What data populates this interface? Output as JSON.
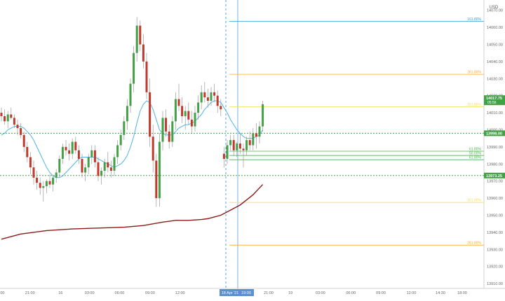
{
  "chart_data": {
    "type": "candlestick",
    "currency_label": "USD",
    "y_ticks": [
      "14070.00",
      "14060.00",
      "14050.00",
      "14040.00",
      "14030.00",
      "14020.00",
      "14010.00",
      "14000.00",
      "13990.00",
      "13980.00",
      "13970.00",
      "13960.00",
      "13950.00",
      "13940.00",
      "13930.00",
      "13920.00",
      "13910.00"
    ],
    "y_tick_values": [
      14070,
      14060,
      14050,
      14040,
      14030,
      14020,
      14010,
      14000,
      13990,
      13980,
      13970,
      13960,
      13950,
      13940,
      13930,
      13920,
      13910
    ],
    "x_ticks": [
      {
        "label": "00",
        "pos": 0.005
      },
      {
        "label": "21:00",
        "pos": 0.062
      },
      {
        "label": "16",
        "pos": 0.125
      },
      {
        "label": "03:00",
        "pos": 0.185
      },
      {
        "label": "06:00",
        "pos": 0.247
      },
      {
        "label": "09:00",
        "pos": 0.31
      },
      {
        "label": "12:00",
        "pos": 0.372
      },
      {
        "label": "21:00",
        "pos": 0.555
      },
      {
        "label": "19",
        "pos": 0.6
      },
      {
        "label": "03:00",
        "pos": 0.662
      },
      {
        "label": "06:00",
        "pos": 0.725
      },
      {
        "label": "09:00",
        "pos": 0.787
      },
      {
        "label": "12:00",
        "pos": 0.85
      },
      {
        "label": "14:30",
        "pos": 0.91
      },
      {
        "label": "18:00",
        "pos": 0.955
      }
    ],
    "crosshair_labels": [
      "18 Apr '21",
      "19:00"
    ],
    "ylim": [
      13908,
      14076
    ],
    "price_label": {
      "value": "14017.75",
      "sub": "05:56",
      "y": 14017.75
    },
    "level_labels": [
      {
        "label": "13998.00",
        "y": 13998
      },
      {
        "label": "13973.25",
        "y": 13973.25
      }
    ],
    "horizontal_levels": [
      {
        "y": 14063.5,
        "color": "#2a9fd6",
        "label": "161.80%"
      },
      {
        "y": 14032.5,
        "color": "#ffa726",
        "label": "261.80%"
      },
      {
        "y": 14013.5,
        "color": "#f5e050",
        "label": "161.80%"
      },
      {
        "y": 13998,
        "color": "#43a047",
        "dash": true,
        "label": ""
      },
      {
        "y": 13987.5,
        "color": "#4caf50",
        "label": "61.80%"
      },
      {
        "y": 13985,
        "color": "#4caf50",
        "label": "50.00%"
      },
      {
        "y": 13982.5,
        "color": "#4caf50",
        "label": "61.80%"
      },
      {
        "y": 13973.25,
        "color": "#43a047",
        "dash": true,
        "label": ""
      },
      {
        "y": 13957.5,
        "color": "#f5e050",
        "label": "161.80%"
      },
      {
        "y": 13932.5,
        "color": "#ffa726",
        "label": "261.80%"
      }
    ],
    "candles": [
      [
        14010,
        14013,
        14005,
        14008
      ],
      [
        14008,
        14012,
        14003,
        14005
      ],
      [
        14005,
        14011,
        14001,
        14009
      ],
      [
        14009,
        14013,
        14006,
        14007
      ],
      [
        14007,
        14009,
        14001,
        14003
      ],
      [
        14003,
        14006,
        13997,
        14001
      ],
      [
        14001,
        14004,
        13995,
        13997
      ],
      [
        13997,
        13999,
        13987,
        13990
      ],
      [
        13990,
        13993,
        13981,
        13984
      ],
      [
        13984,
        13987,
        13974,
        13978
      ],
      [
        13978,
        13982,
        13968,
        13972
      ],
      [
        13972,
        13976,
        13965,
        13969
      ],
      [
        13969,
        13972,
        13962,
        13966
      ],
      [
        13966,
        13970,
        13958,
        13967
      ],
      [
        13967,
        13971,
        13963,
        13970
      ],
      [
        13970,
        13974,
        13966,
        13968
      ],
      [
        13968,
        13973,
        13964,
        13972
      ],
      [
        13972,
        13977,
        13969,
        13975
      ],
      [
        13975,
        13985,
        13972,
        13983
      ],
      [
        13983,
        13992,
        13980,
        13990
      ],
      [
        13990,
        13994,
        13985,
        13988
      ],
      [
        13988,
        13992,
        13982,
        13986
      ],
      [
        13986,
        13995,
        13983,
        13993
      ],
      [
        13993,
        13996,
        13986,
        13988
      ],
      [
        13988,
        13991,
        13980,
        13983
      ],
      [
        13983,
        13986,
        13972,
        13975
      ],
      [
        13975,
        13980,
        13970,
        13978
      ],
      [
        13978,
        13986,
        13974,
        13984
      ],
      [
        13984,
        13991,
        13980,
        13988
      ],
      [
        13988,
        13991,
        13978,
        13981
      ],
      [
        13981,
        13984,
        13970,
        13973
      ],
      [
        13973,
        13978,
        13968,
        13976
      ],
      [
        13976,
        13983,
        13972,
        13981
      ],
      [
        13981,
        13987,
        13975,
        13978
      ],
      [
        13978,
        13982,
        13972,
        13976
      ],
      [
        13976,
        13986,
        13973,
        13984
      ],
      [
        13984,
        13994,
        13980,
        13991
      ],
      [
        13991,
        14000,
        13988,
        13997
      ],
      [
        13997,
        14008,
        13994,
        14005
      ],
      [
        14005,
        14018,
        14000,
        14014
      ],
      [
        14014,
        14030,
        14010,
        14027
      ],
      [
        14027,
        14049,
        14022,
        14045
      ],
      [
        14045,
        14066,
        14040,
        14061
      ],
      [
        14061,
        14064,
        14046,
        14050
      ],
      [
        14050,
        14056,
        14036,
        14040
      ],
      [
        14040,
        14045,
        14018,
        14022
      ],
      [
        14022,
        14030,
        13990,
        13996
      ],
      [
        13996,
        14003,
        13975,
        13982
      ],
      [
        13982,
        13986,
        13955,
        13960
      ],
      [
        13960,
        13998,
        13955,
        13993
      ],
      [
        13993,
        14011,
        13988,
        14007
      ],
      [
        14007,
        14012,
        13996,
        13999
      ],
      [
        13999,
        14003,
        13989,
        13993
      ],
      [
        13993,
        14008,
        13990,
        14005
      ],
      [
        14005,
        14022,
        14000,
        14018
      ],
      [
        14018,
        14027,
        14011,
        14014
      ],
      [
        14014,
        14019,
        14004,
        14008
      ],
      [
        14008,
        14014,
        14000,
        14011
      ],
      [
        14011,
        14016,
        14003,
        14006
      ],
      [
        14006,
        14011,
        13998,
        14002
      ],
      [
        14002,
        14014,
        13999,
        14010
      ],
      [
        14010,
        14020,
        14006,
        14016
      ],
      [
        14016,
        14026,
        14012,
        14022
      ],
      [
        14022,
        14028,
        14016,
        14019
      ],
      [
        14019,
        14024,
        14013,
        14017
      ],
      [
        14017,
        14025,
        14014,
        14022
      ],
      [
        14022,
        14027,
        14016,
        14020
      ],
      [
        14020,
        14023,
        14010,
        14014
      ],
      [
        14014,
        14018,
        14008,
        14012
      ],
      [
        13986,
        13990,
        13978,
        13983
      ],
      [
        13983,
        13994,
        13980,
        13991
      ],
      [
        13991,
        13997,
        13988,
        13994
      ],
      [
        13994,
        13997,
        13985,
        13988
      ],
      [
        13988,
        13993,
        13984,
        13992
      ],
      [
        13992,
        13998,
        13986,
        13989
      ],
      [
        13989,
        13992,
        13978,
        13988
      ],
      [
        13988,
        13996,
        13985,
        13994
      ],
      [
        13994,
        13999,
        13988,
        13991
      ],
      [
        13991,
        14001,
        13988,
        13998
      ],
      [
        13998,
        14004,
        13989,
        13996
      ],
      [
        13996,
        14005,
        13992,
        14002
      ],
      [
        14002,
        14017,
        13999,
        14015
      ]
    ],
    "ema_fast": [
      13997,
      13998,
      14000,
      14001,
      14002,
      14002,
      14002,
      14001,
      13999,
      13997,
      13994,
      13990,
      13986,
      13982,
      13978,
      13975,
      13973,
      13972,
      13972,
      13973,
      13975,
      13977,
      13979,
      13981,
      13983,
      13984,
      13984,
      13984,
      13984,
      13984,
      13983,
      13982,
      13981,
      13980,
      13979,
      13978,
      13979,
      13980,
      13982,
      13985,
      13990,
      13996,
      14004,
      14011,
      14015,
      14017,
      14016,
      14012,
      14006,
      14000,
      13998,
      13997,
      13997,
      13997,
      13999,
      14001,
      14002,
      14003,
      14003,
      14004,
      14005,
      14007,
      14009,
      14012,
      14014,
      14016,
      14017,
      14017,
      14016,
      14013,
      14010,
      14006,
      14003,
      14000,
      13998,
      13996,
      13995,
      13995,
      13995,
      13996,
      13997,
      14000
    ],
    "ema_slow": [
      [
        0,
        13936
      ],
      [
        6,
        13939
      ],
      [
        14,
        13941
      ],
      [
        22,
        13942
      ],
      [
        30,
        13942.5
      ],
      [
        38,
        13943
      ],
      [
        44,
        13944
      ],
      [
        50,
        13946
      ],
      [
        54,
        13947
      ],
      [
        58,
        13947
      ],
      [
        62,
        13947.5
      ],
      [
        64,
        13948
      ],
      [
        66,
        13949
      ],
      [
        68,
        13950
      ],
      [
        70,
        13952
      ],
      [
        72,
        13954
      ],
      [
        74,
        13956
      ],
      [
        76,
        13959
      ],
      [
        78,
        13962
      ],
      [
        80,
        13966
      ],
      [
        81,
        13968
      ]
    ]
  }
}
